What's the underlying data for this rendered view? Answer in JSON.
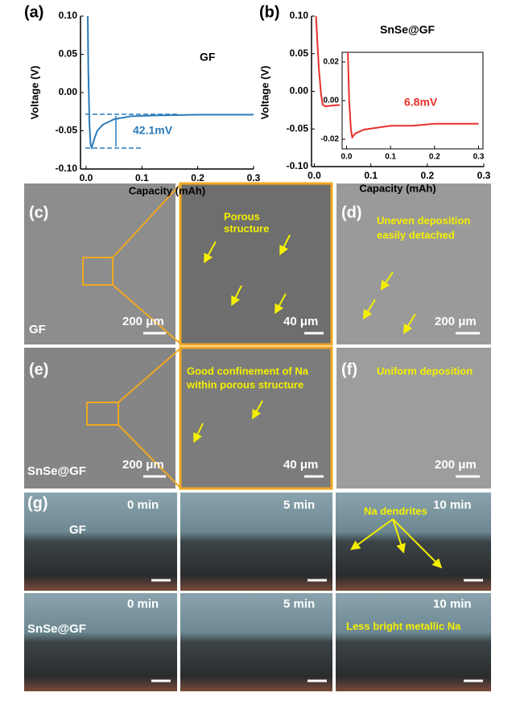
{
  "chart_data": [
    {
      "type": "line",
      "panel_label": "(a)",
      "x_label": "Capacity (mAh)",
      "y_label": "Voltage (V)",
      "color": "#2a7ab8",
      "x": [
        0.003,
        0.004,
        0.006,
        0.008,
        0.01,
        0.015,
        0.02,
        0.03,
        0.05,
        0.08,
        0.12,
        0.2,
        0.3
      ],
      "values": [
        0.1,
        0.03,
        -0.04,
        -0.068,
        -0.072,
        -0.06,
        -0.05,
        -0.042,
        -0.035,
        -0.031,
        -0.03,
        -0.029,
        -0.029
      ],
      "xlim": [
        -0.01,
        0.3
      ],
      "ylim": [
        -0.1,
        0.1
      ],
      "xticks": [
        {
          "value": 0,
          "label": "0.0"
        },
        {
          "value": 0.1,
          "label": "0.1"
        },
        {
          "value": 0.2,
          "label": "0.2"
        },
        {
          "value": 0.3,
          "label": "0.3"
        }
      ],
      "yticks": [
        {
          "value": -0.1,
          "label": "-0.10"
        },
        {
          "value": -0.05,
          "label": "-0.05"
        },
        {
          "value": 0,
          "label": "0.00"
        },
        {
          "value": 0.05,
          "label": "0.05"
        },
        {
          "value": 0.1,
          "label": "0.10"
        }
      ],
      "annotations": [
        "GF",
        "42.1mV"
      ]
    },
    {
      "type": "line",
      "panel_label": "(b)",
      "x_label": "Capacity (mAh)",
      "y_label": "Voltage (V)",
      "color": "#e8302a",
      "x": [
        0.003,
        0.005,
        0.008,
        0.012,
        0.015,
        0.02,
        0.03,
        0.045
      ],
      "values": [
        0.1,
        0.07,
        0.03,
        -0.005,
        -0.018,
        -0.02,
        -0.019,
        -0.018
      ],
      "xlim": [
        -0.005,
        0.3
      ],
      "ylim": [
        -0.1,
        0.1
      ],
      "xticks": [
        {
          "value": 0,
          "label": "0.0"
        },
        {
          "value": 0.1,
          "label": "0.1"
        },
        {
          "value": 0.2,
          "label": "0.2"
        },
        {
          "value": 0.3,
          "label": "0.3"
        }
      ],
      "yticks": [
        {
          "value": -0.1,
          "label": "-0.10"
        },
        {
          "value": -0.05,
          "label": "-0.05"
        },
        {
          "value": 0,
          "label": "0.00"
        },
        {
          "value": 0.05,
          "label": "0.05"
        },
        {
          "value": 0.1,
          "label": "0.10"
        }
      ],
      "annotations": [
        "SnSe@GF"
      ]
    },
    {
      "type": "line",
      "color": "#e8302a",
      "x": [
        0.003,
        0.006,
        0.01,
        0.013,
        0.02,
        0.04,
        0.07,
        0.1,
        0.15,
        0.2,
        0.3
      ],
      "values": [
        0.025,
        0.0,
        -0.015,
        -0.019,
        -0.017,
        -0.015,
        -0.014,
        -0.013,
        -0.013,
        -0.012,
        -0.012
      ],
      "xlim": [
        -0.01,
        0.31
      ],
      "ylim": [
        -0.025,
        0.025
      ],
      "xticks": [
        {
          "value": 0,
          "label": "0.0"
        },
        {
          "value": 0.1,
          "label": "0.1"
        },
        {
          "value": 0.2,
          "label": "0.2"
        },
        {
          "value": 0.3,
          "label": "0.3"
        }
      ],
      "yticks": [
        {
          "value": -0.02,
          "label": "-0.02"
        },
        {
          "value": 0,
          "label": "0.00"
        },
        {
          "value": 0.02,
          "label": "0.02"
        }
      ],
      "annotations": [
        "6.8mV"
      ]
    }
  ],
  "image_panels": [
    {
      "label": "(c)",
      "texts": [
        "GF",
        "200 μm"
      ]
    },
    {
      "texts": [
        "Porous",
        "structure",
        "40 μm"
      ]
    },
    {
      "label": "(d)",
      "texts": [
        "Uneven deposition",
        "easily detached",
        "200 μm"
      ]
    },
    {
      "label": "(e)",
      "texts": [
        "SnSe@GF",
        "200 μm"
      ]
    },
    {
      "texts": [
        "Good confinement of Na",
        "within porous structure",
        "40 μm"
      ]
    },
    {
      "label": "(f)",
      "texts": [
        "Uniform deposition",
        "200 μm"
      ]
    },
    {
      "label": "(g)",
      "texts": [
        "0 min",
        "GF"
      ]
    },
    {
      "texts": [
        "5 min"
      ]
    },
    {
      "texts": [
        "10 min",
        "Na dendrites"
      ]
    },
    {
      "texts": [
        "0 min",
        "SnSe@GF"
      ]
    },
    {
      "texts": [
        "5 min"
      ]
    },
    {
      "texts": [
        "10 min",
        "Less bright metallic Na"
      ]
    }
  ]
}
